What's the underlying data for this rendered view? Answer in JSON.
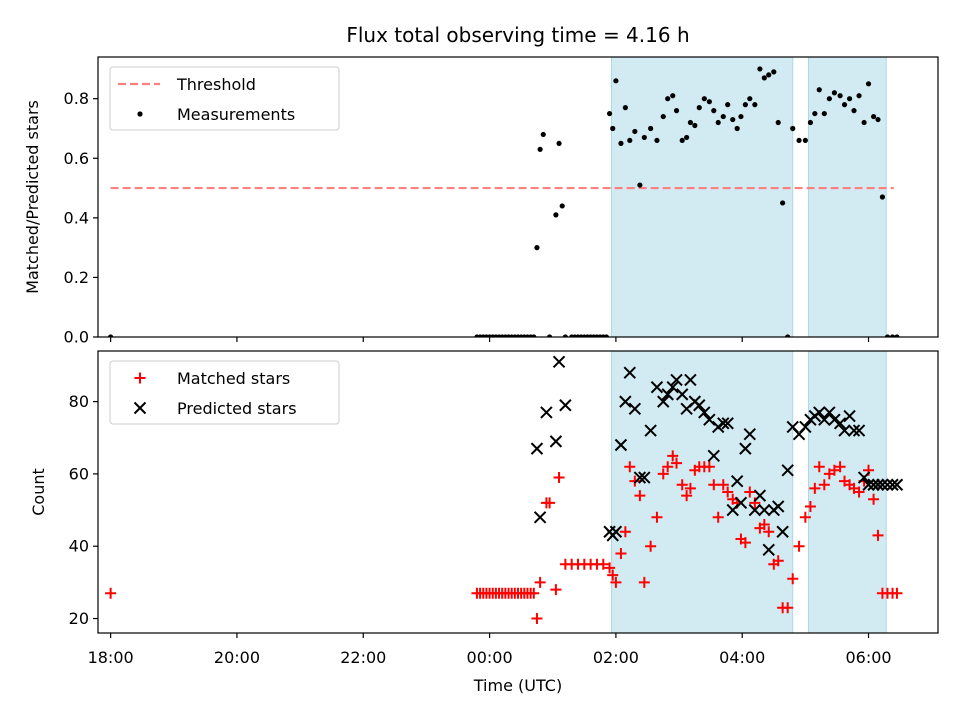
{
  "chart_data": [
    {
      "type": "scatter",
      "title": "Flux total observing time = 4.16 h",
      "ylabel": "Matched/Predicted stars",
      "xlabel": "",
      "xlim": [
        -6.2,
        7.1
      ],
      "ylim": [
        0.0,
        0.94
      ],
      "yticks": [
        0.0,
        0.2,
        0.4,
        0.6,
        0.8
      ],
      "ytick_labels": [
        "0.0",
        "0.2",
        "0.4",
        "0.6",
        "0.8"
      ],
      "xticks": [
        -6,
        -4,
        -2,
        0,
        2,
        4,
        6
      ],
      "legend_position": "upper-left",
      "shaded_intervals": [
        [
          1.93,
          4.8
        ],
        [
          5.05,
          6.28
        ]
      ],
      "shade_color": "#add8e6",
      "series": [
        {
          "name": "Threshold",
          "style": "dashed-line",
          "color": "#ff7f7f",
          "x": [
            -6,
            6.4
          ],
          "y": [
            0.5,
            0.5
          ]
        },
        {
          "name": "Measurements",
          "style": "dot",
          "color": "#000000",
          "x": [
            -6.0,
            -0.2,
            -0.15,
            -0.1,
            -0.05,
            0.0,
            0.05,
            0.1,
            0.15,
            0.2,
            0.25,
            0.3,
            0.35,
            0.4,
            0.45,
            0.5,
            0.55,
            0.6,
            0.65,
            0.7,
            0.75,
            0.8,
            0.85,
            0.95,
            1.05,
            1.1,
            1.15,
            1.2,
            1.3,
            1.35,
            1.4,
            1.45,
            1.5,
            1.55,
            1.6,
            1.65,
            1.7,
            1.75,
            1.8,
            1.85,
            1.9,
            1.95,
            2.0,
            2.08,
            2.15,
            2.22,
            2.3,
            2.38,
            2.45,
            2.55,
            2.65,
            2.75,
            2.82,
            2.9,
            2.96,
            3.05,
            3.12,
            3.18,
            3.25,
            3.32,
            3.4,
            3.48,
            3.55,
            3.62,
            3.7,
            3.77,
            3.85,
            3.92,
            3.98,
            4.05,
            4.12,
            4.2,
            4.28,
            4.35,
            4.42,
            4.5,
            4.57,
            4.64,
            4.72,
            4.8,
            4.9,
            5.0,
            5.08,
            5.15,
            5.22,
            5.3,
            5.38,
            5.46,
            5.55,
            5.62,
            5.7,
            5.77,
            5.85,
            5.93,
            6.0,
            6.08,
            6.15,
            6.22,
            6.3,
            6.38,
            6.45
          ],
          "y": [
            0.0,
            0.0,
            0.0,
            0.0,
            0.0,
            0.0,
            0.0,
            0.0,
            0.0,
            0.0,
            0.0,
            0.0,
            0.0,
            0.0,
            0.0,
            0.0,
            0.0,
            0.0,
            0.0,
            0.0,
            0.3,
            0.63,
            0.68,
            0.0,
            0.41,
            0.65,
            0.44,
            0.0,
            0.0,
            0.0,
            0.0,
            0.0,
            0.0,
            0.0,
            0.0,
            0.0,
            0.0,
            0.0,
            0.0,
            0.0,
            0.75,
            0.7,
            0.86,
            0.65,
            0.77,
            0.66,
            0.69,
            0.51,
            0.67,
            0.7,
            0.66,
            0.74,
            0.8,
            0.81,
            0.76,
            0.66,
            0.67,
            0.72,
            0.71,
            0.77,
            0.8,
            0.79,
            0.76,
            0.72,
            0.74,
            0.78,
            0.73,
            0.7,
            0.74,
            0.78,
            0.8,
            0.78,
            0.9,
            0.87,
            0.88,
            0.89,
            0.72,
            0.45,
            0.0,
            0.7,
            0.66,
            0.66,
            0.72,
            0.75,
            0.83,
            0.75,
            0.8,
            0.82,
            0.81,
            0.78,
            0.8,
            0.76,
            0.81,
            0.72,
            0.85,
            0.74,
            0.73,
            0.47,
            0.0,
            0.0,
            0.0
          ]
        }
      ]
    },
    {
      "type": "scatter",
      "title": "",
      "ylabel": "Count",
      "xlabel": "Time (UTC)",
      "xlim": [
        -6.2,
        7.1
      ],
      "ylim": [
        16,
        94
      ],
      "yticks": [
        20,
        40,
        60,
        80
      ],
      "ytick_labels": [
        "20",
        "40",
        "60",
        "80"
      ],
      "xticks": [
        -6,
        -4,
        -2,
        0,
        2,
        4,
        6
      ],
      "xtick_labels": [
        "18:00",
        "20:00",
        "22:00",
        "00:00",
        "02:00",
        "04:00",
        "06:00"
      ],
      "legend_position": "upper-left",
      "shaded_intervals": [
        [
          1.93,
          4.8
        ],
        [
          5.05,
          6.28
        ]
      ],
      "shade_color": "#add8e6",
      "series": [
        {
          "name": "Matched stars",
          "style": "plus",
          "color": "#ff0000",
          "x": [
            -6.0,
            -0.2,
            -0.15,
            -0.1,
            -0.05,
            0.0,
            0.05,
            0.1,
            0.15,
            0.2,
            0.25,
            0.3,
            0.35,
            0.4,
            0.45,
            0.5,
            0.55,
            0.6,
            0.65,
            0.7,
            0.75,
            0.8,
            0.9,
            0.95,
            1.05,
            1.1,
            1.2,
            1.3,
            1.4,
            1.5,
            1.6,
            1.7,
            1.8,
            1.9,
            1.95,
            2.0,
            2.08,
            2.15,
            2.22,
            2.3,
            2.38,
            2.45,
            2.55,
            2.65,
            2.75,
            2.82,
            2.9,
            2.96,
            3.05,
            3.12,
            3.18,
            3.25,
            3.32,
            3.4,
            3.48,
            3.55,
            3.62,
            3.7,
            3.77,
            3.85,
            3.92,
            3.98,
            4.05,
            4.12,
            4.2,
            4.28,
            4.35,
            4.42,
            4.5,
            4.57,
            4.64,
            4.72,
            4.8,
            4.9,
            5.0,
            5.08,
            5.15,
            5.22,
            5.3,
            5.38,
            5.46,
            5.55,
            5.62,
            5.7,
            5.77,
            5.85,
            5.93,
            6.0,
            6.08,
            6.15,
            6.22,
            6.3,
            6.38,
            6.45
          ],
          "y": [
            27,
            27,
            27,
            27,
            27,
            27,
            27,
            27,
            27,
            27,
            27,
            27,
            27,
            27,
            27,
            27,
            27,
            27,
            27,
            27,
            20,
            30,
            52,
            52,
            28,
            59,
            35,
            35,
            35,
            35,
            35,
            35,
            35,
            34,
            32,
            30,
            38,
            44,
            62,
            58,
            54,
            30,
            40,
            48,
            60,
            62,
            65,
            63,
            57,
            54,
            56,
            61,
            62,
            62,
            62,
            57,
            48,
            57,
            55,
            53,
            52,
            42,
            41,
            55,
            52,
            45,
            46,
            44,
            35,
            36,
            23,
            23,
            31,
            40,
            48,
            51,
            56,
            62,
            57,
            60,
            61,
            62,
            58,
            57,
            56,
            55,
            58,
            61,
            53,
            43,
            27,
            27,
            27,
            27
          ]
        },
        {
          "name": "Predicted stars",
          "style": "cross",
          "color": "#000000",
          "x": [
            0.75,
            0.8,
            0.9,
            1.05,
            1.1,
            1.2,
            1.9,
            1.95,
            2.0,
            2.08,
            2.15,
            2.22,
            2.3,
            2.38,
            2.45,
            2.55,
            2.65,
            2.75,
            2.82,
            2.9,
            2.96,
            3.05,
            3.12,
            3.18,
            3.25,
            3.32,
            3.4,
            3.48,
            3.55,
            3.62,
            3.7,
            3.77,
            3.85,
            3.92,
            3.98,
            4.05,
            4.12,
            4.2,
            4.28,
            4.35,
            4.42,
            4.5,
            4.57,
            4.64,
            4.72,
            4.8,
            4.9,
            5.0,
            5.08,
            5.15,
            5.22,
            5.3,
            5.38,
            5.46,
            5.55,
            5.62,
            5.7,
            5.77,
            5.85,
            5.93,
            6.0,
            6.08,
            6.15,
            6.22,
            6.3,
            6.38,
            6.45
          ],
          "y": [
            67,
            48,
            77,
            69,
            91,
            79,
            44,
            43,
            44,
            68,
            80,
            88,
            78,
            59,
            59,
            72,
            84,
            80,
            82,
            84,
            86,
            82,
            78,
            86,
            80,
            79,
            77,
            75,
            65,
            73,
            74,
            74,
            50,
            58,
            52,
            67,
            71,
            50,
            54,
            50,
            39,
            50,
            51,
            44,
            61,
            73,
            71,
            73,
            75,
            76,
            77,
            75,
            77,
            75,
            74,
            72,
            76,
            72,
            72,
            59,
            57,
            57,
            57,
            57,
            57,
            57,
            57
          ]
        }
      ]
    }
  ]
}
